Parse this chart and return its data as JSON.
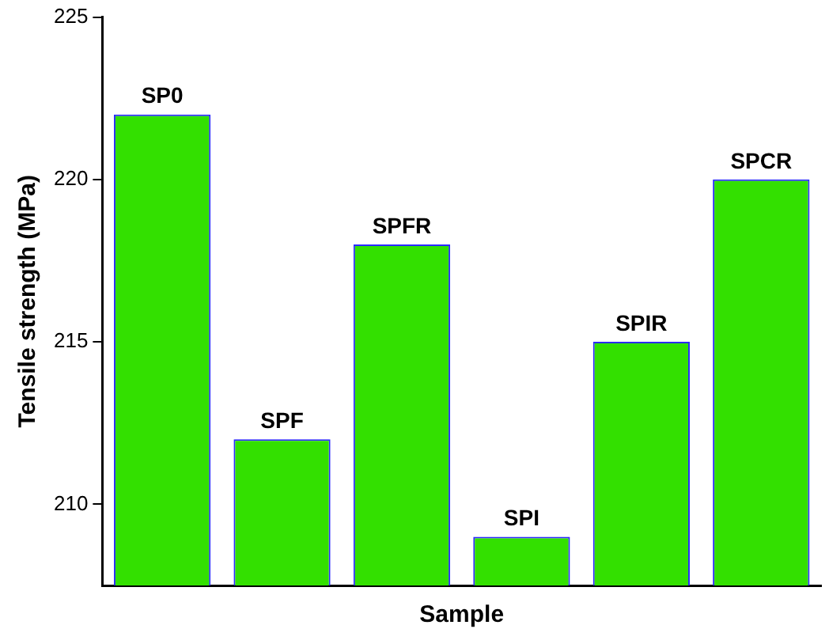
{
  "chart_data": {
    "type": "bar",
    "xlabel": "Sample",
    "ylabel": "Tensile strength (MPa)",
    "categories": [
      "SP0",
      "SPF",
      "SPFR",
      "SPI",
      "SPIR",
      "SPCR"
    ],
    "values": [
      222,
      212,
      218,
      209,
      215,
      220
    ],
    "color": "#33e000",
    "ylim": [
      207.5,
      225
    ],
    "yticks": [
      210,
      215,
      220,
      225
    ],
    "grid": false,
    "legend": false
  }
}
